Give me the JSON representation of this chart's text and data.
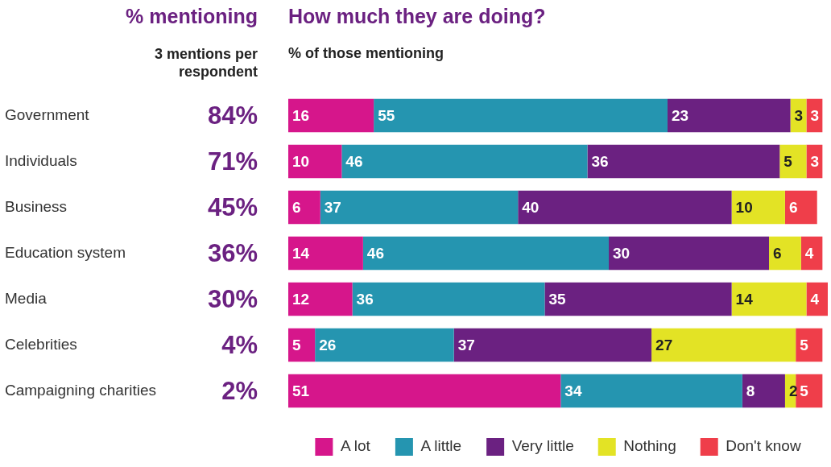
{
  "chart_data": [
    {
      "type": "other",
      "title": "% mentioning",
      "subtitle": "3 mentions per respondent",
      "color": "#6b2181",
      "categories": [
        "Government",
        "Individuals",
        "Business",
        "Education system",
        "Media",
        "Celebrities",
        "Campaigning charities"
      ],
      "value_labels": [
        "84%",
        "71%",
        "45%",
        "36%",
        "30%",
        "4%",
        "2%"
      ]
    },
    {
      "type": "bar",
      "orientation": "horizontal",
      "stacked": true,
      "title": "How much they are doing?",
      "subtitle": "% of those mentioning",
      "categories": [
        null,
        null,
        null,
        null,
        null,
        null,
        null
      ],
      "xlim": [
        0,
        101
      ],
      "tick_labels": false,
      "grid": false,
      "legend": "bottom",
      "data_labels": true,
      "series": [
        {
          "name": "A lot",
          "color": "#d6168b",
          "values": [
            16,
            10,
            6,
            14,
            12,
            5,
            51
          ]
        },
        {
          "name": "A little",
          "color": "#2595b0",
          "values": [
            55,
            46,
            37,
            46,
            36,
            26,
            34
          ]
        },
        {
          "name": "Very little",
          "color": "#6b2181",
          "values": [
            23,
            36,
            40,
            30,
            35,
            37,
            8
          ]
        },
        {
          "name": "Nothing",
          "color": "#e3e325",
          "values": [
            3,
            5,
            10,
            6,
            14,
            27,
            2
          ]
        },
        {
          "name": "Don't know",
          "color": "#ef3e4a",
          "values": [
            3,
            3,
            6,
            4,
            4,
            5,
            5
          ]
        }
      ]
    }
  ]
}
